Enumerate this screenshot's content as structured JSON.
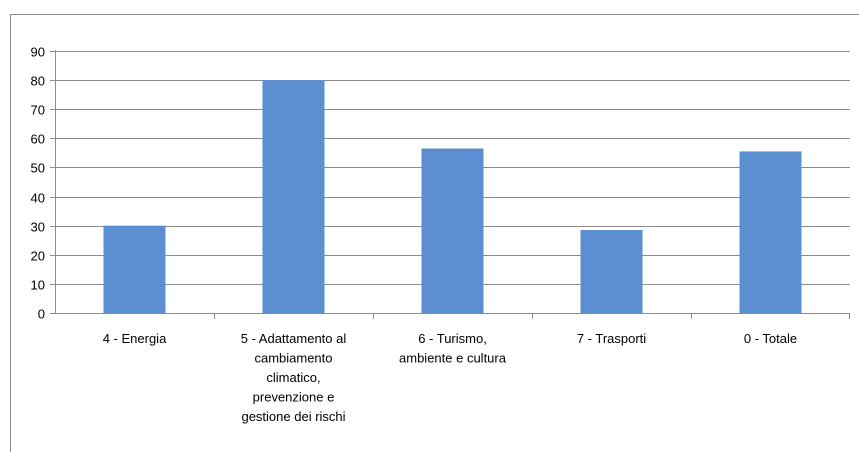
{
  "chart_data": {
    "type": "bar",
    "title": "",
    "xlabel": "",
    "ylabel": "",
    "categories": [
      "4 - Energia",
      "5 - Adattamento al cambiamento climatico, prevenzione e gestione dei rischi",
      "6 - Turismo, ambiente e cultura",
      "7 - Trasporti",
      "0 - Totale"
    ],
    "category_label_lines": [
      [
        "4 - Energia"
      ],
      [
        "5 - Adattamento al",
        "cambiamento",
        "climatico,",
        "prevenzione e",
        "gestione dei rischi"
      ],
      [
        "6 - Turismo,",
        "ambiente e cultura"
      ],
      [
        "7 - Trasporti"
      ],
      [
        "0 - Totale"
      ]
    ],
    "values": [
      30,
      80,
      56.5,
      28.5,
      55.5
    ],
    "ylim": [
      0,
      90
    ],
    "yticks": [
      "0",
      "10",
      "20",
      "30",
      "40",
      "50",
      "60",
      "70",
      "80",
      "90"
    ],
    "grid": true,
    "legend": "none",
    "bar_color": "#5b8fd2",
    "grid_color": "#8c8c8c"
  }
}
